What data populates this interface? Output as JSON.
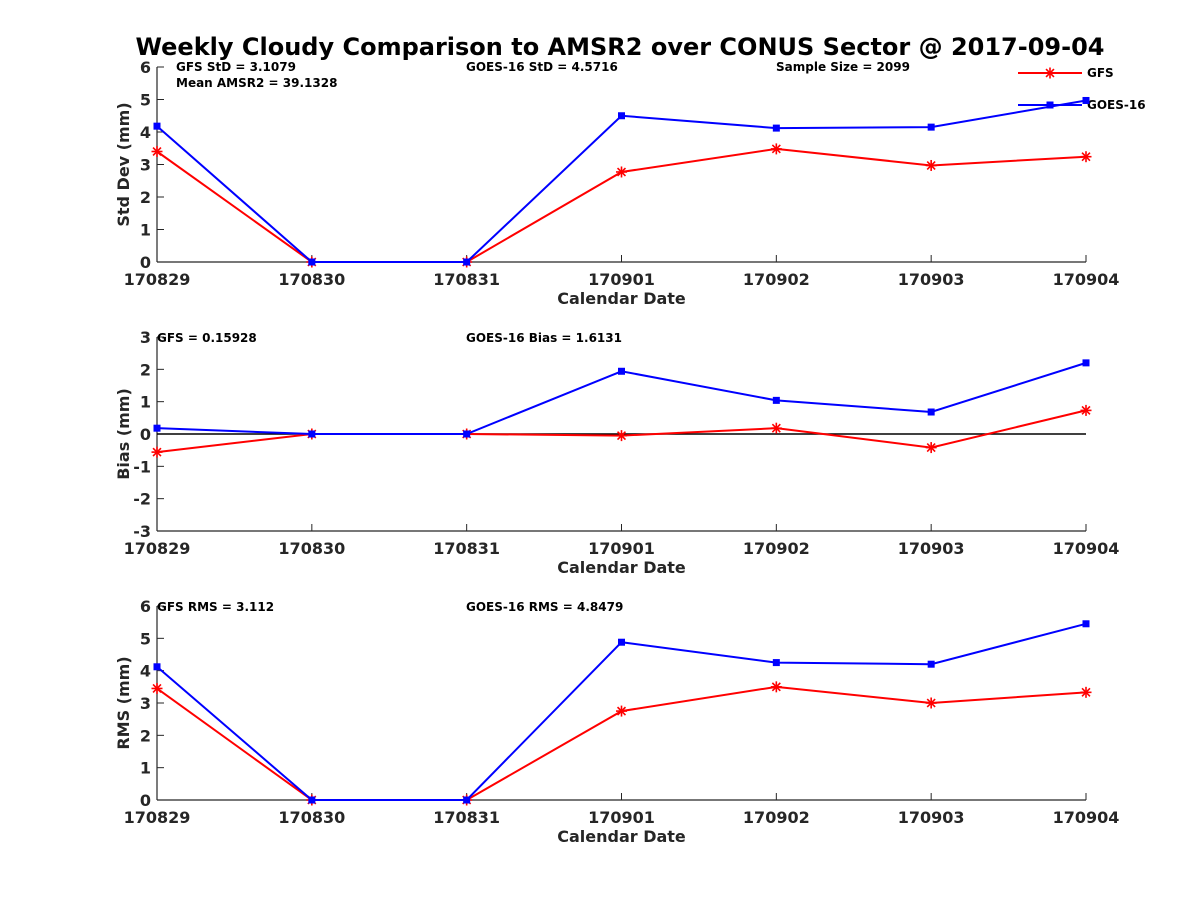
{
  "chart_data": {
    "title": "Weekly Cloudy Comparison to AMSR2 over CONUS Sector @ 2017-09-04",
    "legend": {
      "placement": "top-right",
      "entries": [
        {
          "name": "GFS",
          "color": "#ff0000",
          "marker": "asterisk"
        },
        {
          "name": "GOES-16",
          "color": "#0000ff",
          "marker": "square"
        }
      ]
    },
    "panels": [
      {
        "type": "line",
        "xlabel": "Calendar Date",
        "ylabel": "Std Dev (mm)",
        "categories": [
          "170829",
          "170830",
          "170831",
          "170901",
          "170902",
          "170903",
          "170904"
        ],
        "ylim": [
          0,
          6
        ],
        "yticks": [
          "0",
          "1",
          "2",
          "3",
          "4",
          "5",
          "6"
        ],
        "zero_line": false,
        "annotations": [
          "GFS StD = 3.1079",
          "Mean AMSR2 = 39.1328",
          "GOES-16 StD = 4.5716",
          "Sample Size = 2099"
        ],
        "series": [
          {
            "name": "GFS",
            "color": "#ff0000",
            "values": [
              3.4,
              0,
              0,
              2.77,
              3.48,
              2.97,
              3.24
            ]
          },
          {
            "name": "GOES-16",
            "color": "#0000ff",
            "values": [
              4.18,
              0,
              0,
              4.5,
              4.12,
              4.15,
              4.97
            ]
          }
        ]
      },
      {
        "type": "line",
        "xlabel": "Calendar Date",
        "ylabel": "Bias (mm)",
        "categories": [
          "170829",
          "170830",
          "170831",
          "170901",
          "170902",
          "170903",
          "170904"
        ],
        "ylim": [
          -3,
          3
        ],
        "yticks": [
          "-3",
          "-2",
          "-1",
          "0",
          "1",
          "2",
          "3"
        ],
        "zero_line": true,
        "annotations": [
          "GFS = 0.15928",
          "GOES-16 Bias  = 1.6131"
        ],
        "series": [
          {
            "name": "GFS",
            "color": "#ff0000",
            "values": [
              -0.56,
              0,
              0,
              -0.05,
              0.18,
              -0.42,
              0.73
            ]
          },
          {
            "name": "GOES-16",
            "color": "#0000ff",
            "values": [
              0.18,
              0,
              0,
              1.94,
              1.04,
              0.68,
              2.2
            ]
          }
        ]
      },
      {
        "type": "line",
        "xlabel": "Calendar Date",
        "ylabel": "RMS (mm)",
        "categories": [
          "170829",
          "170830",
          "170831",
          "170901",
          "170902",
          "170903",
          "170904"
        ],
        "ylim": [
          0,
          6
        ],
        "yticks": [
          "0",
          "1",
          "2",
          "3",
          "4",
          "5",
          "6"
        ],
        "zero_line": false,
        "annotations": [
          "GFS RMS = 3.112",
          "GOES-16 RMS = 4.8479"
        ],
        "series": [
          {
            "name": "GFS",
            "color": "#ff0000",
            "values": [
              3.45,
              0,
              0,
              2.75,
              3.5,
              3.0,
              3.33
            ]
          },
          {
            "name": "GOES-16",
            "color": "#0000ff",
            "values": [
              4.12,
              0,
              0,
              4.88,
              4.25,
              4.2,
              5.45
            ]
          }
        ]
      }
    ]
  }
}
